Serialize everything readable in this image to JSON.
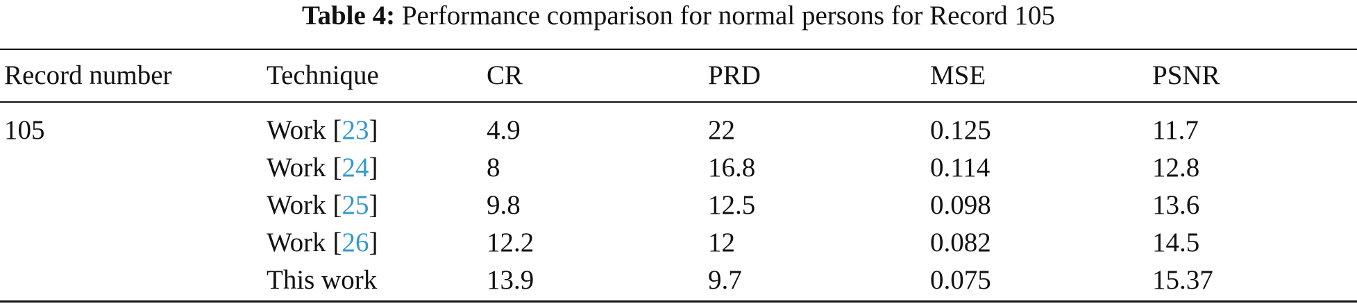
{
  "caption": {
    "label": "Table 4:",
    "text": "Performance comparison for normal persons for Record 105"
  },
  "headers": [
    "Record number",
    "Technique",
    "CR",
    "PRD",
    "MSE",
    "PSNR"
  ],
  "rows": [
    {
      "record": "105",
      "technique": "Work",
      "ref": "23",
      "cr": "4.9",
      "prd": "22",
      "mse": "0.125",
      "psnr": "11.7"
    },
    {
      "record": "",
      "technique": "Work",
      "ref": "24",
      "cr": "8",
      "prd": "16.8",
      "mse": "0.114",
      "psnr": "12.8"
    },
    {
      "record": "",
      "technique": "Work",
      "ref": "25",
      "cr": "9.8",
      "prd": "12.5",
      "mse": "0.098",
      "psnr": "13.6"
    },
    {
      "record": "",
      "technique": "Work",
      "ref": "26",
      "cr": "12.2",
      "prd": "12",
      "mse": "0.082",
      "psnr": "14.5"
    },
    {
      "record": "",
      "technique": "This work",
      "ref": "",
      "cr": "13.9",
      "prd": "9.7",
      "mse": "0.075",
      "psnr": "15.37"
    }
  ],
  "colors": {
    "text": "#111111",
    "reference_link": "#3399cc",
    "background": "#ffffff"
  }
}
